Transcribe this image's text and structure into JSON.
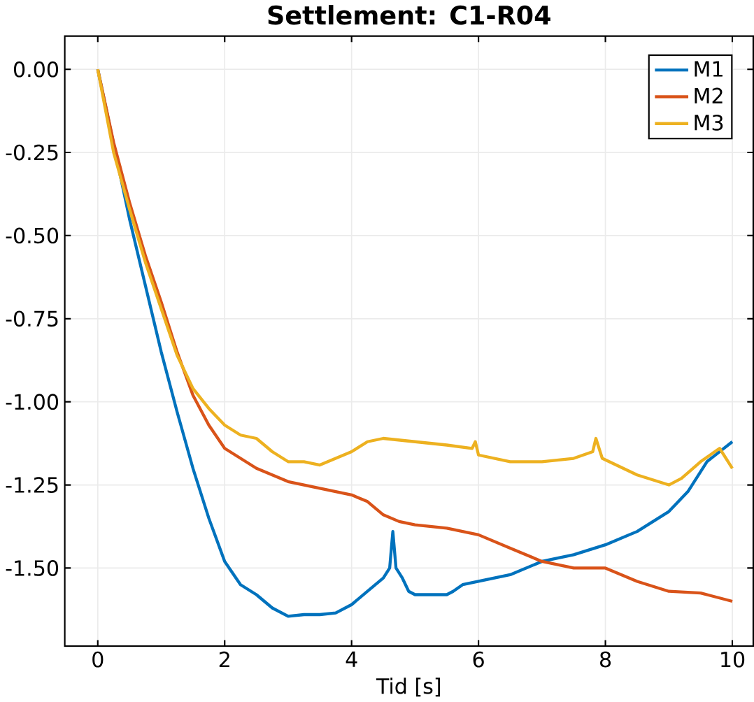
{
  "chart_data": {
    "type": "line",
    "title": "Settlement: C1-R04",
    "xlabel": "Tid [s]",
    "xlim": [
      -0.52,
      10.33
    ],
    "ylim": [
      -1.735,
      0.1
    ],
    "xticks": [
      0,
      2,
      4,
      6,
      8,
      10
    ],
    "yticks": [
      {
        "value": 0,
        "label": "0.00"
      },
      {
        "value": -0.25,
        "label": "-0.25"
      },
      {
        "value": -0.5,
        "label": "-0.50"
      },
      {
        "value": -0.75,
        "label": "-0.75"
      },
      {
        "value": -1,
        "label": "-1.00"
      },
      {
        "value": -1.25,
        "label": "-1.25"
      },
      {
        "value": -1.5,
        "label": "-1.50"
      }
    ],
    "grid": true,
    "legend": "top right",
    "line_style": "solid",
    "marker": "none",
    "series": [
      {
        "name": "M1",
        "color": "#0072bd",
        "x": [
          0,
          0.25,
          0.5,
          0.75,
          1.0,
          1.25,
          1.5,
          1.75,
          2.0,
          2.25,
          2.5,
          2.75,
          3.0,
          3.25,
          3.5,
          3.75,
          4.0,
          4.25,
          4.5,
          4.6,
          4.65,
          4.7,
          4.8,
          4.9,
          5.0,
          5.25,
          5.5,
          5.6,
          5.75,
          6.0,
          6.5,
          7.0,
          7.5,
          8.0,
          8.5,
          9.0,
          9.3,
          9.6,
          10.0
        ],
        "values": [
          0,
          null,
          -0.45,
          -0.65,
          -0.85,
          -1.03,
          -1.2,
          -1.35,
          -1.48,
          -1.55,
          -1.58,
          -1.62,
          -1.645,
          -1.64,
          -1.64,
          -1.635,
          -1.61,
          -1.57,
          -1.53,
          -1.5,
          -1.39,
          -1.5,
          -1.53,
          -1.57,
          -1.58,
          -1.58,
          -1.58,
          -1.57,
          -1.55,
          -1.54,
          -1.52,
          -1.48,
          -1.46,
          -1.43,
          -1.39,
          -1.33,
          -1.27,
          -1.18,
          -1.12
        ]
      },
      {
        "name": "M2",
        "color": "#d95319",
        "x": [
          0,
          0.25,
          0.5,
          0.75,
          1.0,
          1.25,
          1.5,
          1.75,
          2.0,
          2.25,
          2.5,
          3.0,
          3.5,
          4.0,
          4.25,
          4.5,
          4.75,
          5.0,
          5.5,
          6.0,
          6.5,
          7.0,
          7.5,
          8.0,
          8.5,
          9.0,
          9.5,
          10.0
        ],
        "values": [
          0,
          -0.22,
          -0.4,
          -0.56,
          -0.7,
          -0.85,
          -0.98,
          -1.07,
          -1.14,
          -1.17,
          -1.2,
          -1.24,
          -1.26,
          -1.28,
          -1.3,
          -1.34,
          -1.36,
          -1.37,
          -1.38,
          -1.4,
          -1.44,
          -1.48,
          -1.5,
          -1.5,
          -1.54,
          -1.57,
          -1.575,
          -1.6
        ]
      },
      {
        "name": "M3",
        "color": "#edb120",
        "x": [
          0,
          0.1,
          0.25,
          0.5,
          0.75,
          1.0,
          1.25,
          1.5,
          1.75,
          2.0,
          2.25,
          2.5,
          2.75,
          3.0,
          3.25,
          3.5,
          3.75,
          4.0,
          4.25,
          4.5,
          5.0,
          5.5,
          5.9,
          5.95,
          6.0,
          6.5,
          7.0,
          7.5,
          7.8,
          7.85,
          7.95,
          8.5,
          9.0,
          9.2,
          9.5,
          9.8,
          9.9,
          10.0
        ],
        "values": [
          0,
          -0.1,
          -0.25,
          -0.42,
          -0.58,
          -0.72,
          -0.86,
          -0.96,
          -1.02,
          -1.07,
          -1.1,
          -1.11,
          -1.15,
          -1.18,
          -1.18,
          -1.19,
          -1.17,
          -1.15,
          -1.12,
          -1.11,
          -1.12,
          -1.13,
          -1.14,
          -1.12,
          -1.16,
          -1.18,
          -1.18,
          -1.17,
          -1.15,
          -1.11,
          -1.17,
          -1.22,
          -1.25,
          -1.23,
          -1.18,
          -1.14,
          -1.17,
          -1.2
        ]
      }
    ]
  }
}
